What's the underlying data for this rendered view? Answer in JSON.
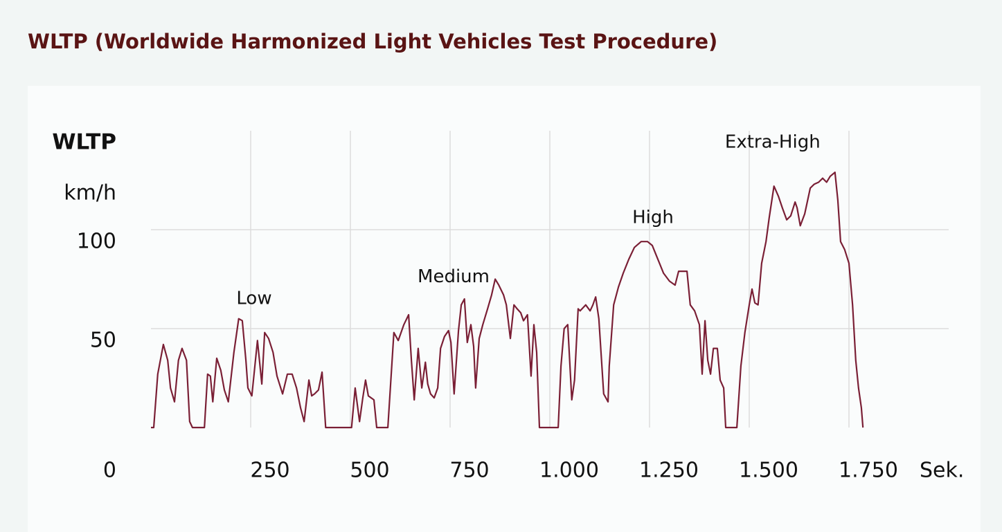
{
  "chart_data": {
    "type": "line",
    "title": "WLTP (Worldwide Harmonized Light Vehicles Test Procedure)",
    "y_label_title": "WLTP",
    "y_label": "km/h",
    "x_label": "Sek.",
    "annotations": [
      {
        "text": "Low",
        "x": 250,
        "y": 65
      },
      {
        "text": "Medium",
        "x": 750,
        "y": 76
      },
      {
        "text": "High",
        "x": 1250,
        "y": 106
      },
      {
        "text": "Extra-High",
        "x": 1550,
        "y": 144
      }
    ],
    "xlim": [
      0,
      2000
    ],
    "ylim": [
      0,
      150
    ],
    "xticks": [
      250,
      500,
      750,
      {
        "value": 1000,
        "label": "1.000"
      },
      {
        "value": 1250,
        "label": "1.250"
      },
      {
        "value": 1500,
        "label": "1.500"
      },
      {
        "value": 1750,
        "label": "1.750"
      }
    ],
    "yticks": [
      0,
      50,
      100
    ],
    "grid": true,
    "series": [
      {
        "name": "WLTP",
        "color": "#7a1f35",
        "x": [
          0,
          7,
          17,
          31,
          42,
          49,
          59,
          69,
          78,
          89,
          97,
          104,
          134,
          142,
          149,
          155,
          165,
          175,
          184,
          194,
          208,
          220,
          229,
          238,
          243,
          253,
          267,
          278,
          285,
          295,
          306,
          316,
          330,
          342,
          354,
          365,
          375,
          384,
          396,
          403,
          410,
          420,
          429,
          438,
          503,
          512,
          523,
          531,
          538,
          545,
          559,
          566,
          594,
          609,
          620,
          634,
          646,
          653,
          660,
          670,
          679,
          688,
          694,
          701,
          710,
          719,
          726,
          736,
          746,
          752,
          760,
          771,
          778,
          786,
          793,
          802,
          809,
          814,
          823,
          832,
          844,
          854,
          863,
          872,
          884,
          891,
          901,
          910,
          918,
          927,
          934,
          944,
          953,
          960,
          967,
          974,
          1021,
          1028,
          1036,
          1045,
          1055,
          1062,
          1071,
          1076,
          1090,
          1101,
          1108,
          1115,
          1123,
          1135,
          1146,
          1149,
          1160,
          1172,
          1184,
          1198,
          1212,
          1229,
          1245,
          1257,
          1271,
          1285,
          1300,
          1314,
          1323,
          1344,
          1352,
          1363,
          1375,
          1382,
          1389,
          1396,
          1403,
          1410,
          1420,
          1427,
          1436,
          1441,
          1469,
          1479,
          1489,
          1500,
          1507,
          1514,
          1522,
          1531,
          1542,
          1550,
          1562,
          1573,
          1583,
          1594,
          1604,
          1615,
          1620,
          1628,
          1639,
          1653,
          1663,
          1674,
          1684,
          1694,
          1703,
          1715,
          1722,
          1729,
          1739,
          1750,
          1759,
          1767,
          1774,
          1781,
          1785
        ],
        "values": [
          0,
          0,
          27,
          42,
          34,
          20,
          13,
          34,
          40,
          34,
          3,
          0,
          0,
          27,
          26,
          13,
          35,
          29,
          19,
          13,
          38,
          55,
          54,
          34,
          20,
          16,
          44,
          22,
          48,
          45,
          38,
          26,
          17,
          27,
          27,
          20,
          10,
          3,
          24,
          16,
          17,
          19,
          28,
          0,
          0,
          20,
          3,
          15,
          24,
          16,
          14,
          0,
          0,
          48,
          44,
          52,
          57,
          34,
          14,
          40,
          20,
          33,
          22,
          17,
          15,
          20,
          40,
          46,
          49,
          43,
          17,
          49,
          62,
          65,
          43,
          52,
          41,
          20,
          45,
          52,
          60,
          67,
          75,
          72,
          67,
          62,
          45,
          62,
          60,
          58,
          54,
          57,
          26,
          52,
          38,
          0,
          0,
          31,
          50,
          52,
          14,
          24,
          60,
          59,
          62,
          59,
          62,
          66,
          55,
          17,
          13,
          31,
          62,
          71,
          78,
          85,
          91,
          94,
          94,
          92,
          85,
          78,
          74,
          72,
          79,
          79,
          62,
          59,
          52,
          27,
          54,
          34,
          27,
          40,
          40,
          24,
          20,
          0,
          0,
          31,
          48,
          62,
          70,
          63,
          62,
          83,
          94,
          106,
          122,
          117,
          111,
          105,
          107,
          114,
          111,
          102,
          108,
          121,
          123,
          124,
          126,
          124,
          127,
          129,
          115,
          94,
          90,
          83,
          62,
          34,
          20,
          10,
          0
        ]
      }
    ]
  }
}
